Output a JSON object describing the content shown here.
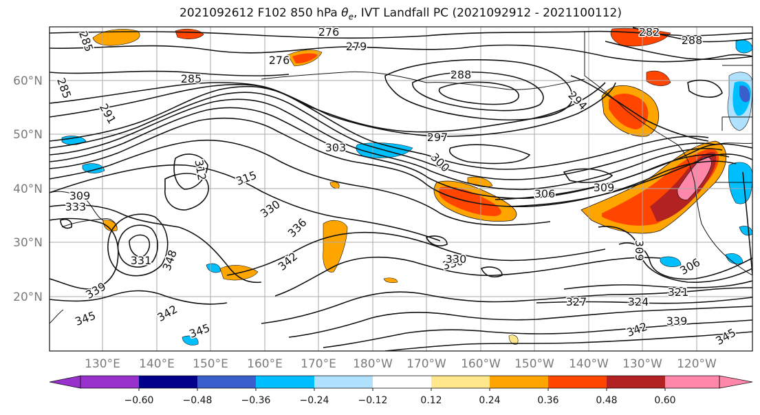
{
  "title_prefix": "2021092612 F102 850 hPa ",
  "title_theta": "θ",
  "title_sub": "e",
  "title_suffix": ", IVT Landfall PC (2021092912 - 2021100112)",
  "lat_labels": [
    "60°N",
    "50°N",
    "40°N",
    "30°N",
    "20°N"
  ],
  "lon_labels": [
    "130°E",
    "140°E",
    "150°E",
    "160°E",
    "170°E",
    "180°W",
    "170°W",
    "160°W",
    "150°W",
    "140°W",
    "130°W",
    "120°W"
  ],
  "contour_labels": [
    "276",
    "282",
    "288",
    "279",
    "276",
    "285",
    "285",
    "288",
    "294",
    "291",
    "285",
    "297",
    "303",
    "300",
    "312",
    "315",
    "309",
    "306",
    "330",
    "336",
    "333",
    "330",
    "309",
    "309",
    "331",
    "348",
    "342",
    "330",
    "306",
    "339",
    "327",
    "324",
    "321",
    "342",
    "345",
    "342",
    "339",
    "345",
    "345"
  ],
  "colorbar": {
    "ticks": [
      "−0.60",
      "−0.48",
      "−0.36",
      "−0.24",
      "−0.12",
      "0.12",
      "0.24",
      "0.36",
      "0.48",
      "0.60"
    ],
    "colors": [
      "#9932cc",
      "#00008b",
      "#3a5fcd",
      "#00bfff",
      "#b0e2ff",
      "#ffffff",
      "#ffe78b",
      "#ffa500",
      "#ff4500",
      "#b22222",
      "#ff88aa",
      "#ff88aa"
    ]
  },
  "shading_colors": {
    "pos1": "#ffe78b",
    "pos2": "#ffa500",
    "pos3": "#ff4500",
    "pos4": "#b22222",
    "pos5": "#ff88aa",
    "neg1": "#b0e2ff",
    "neg2": "#00bfff",
    "neg3": "#3a5fcd"
  }
}
